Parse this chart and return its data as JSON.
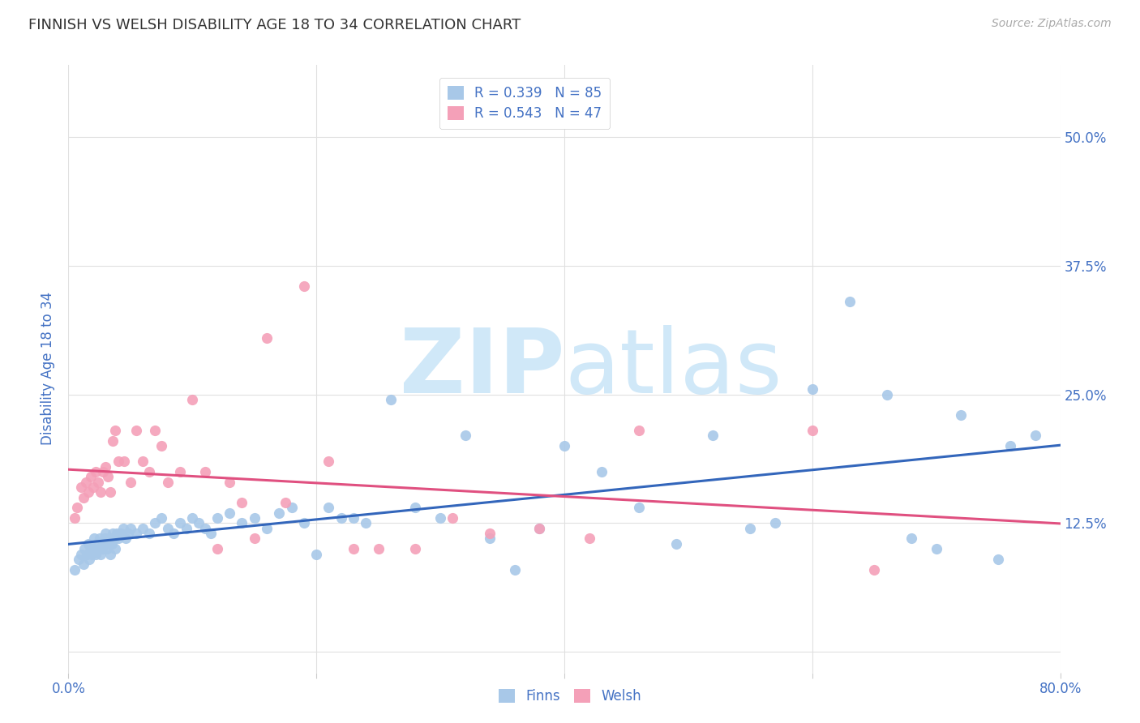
{
  "title": "FINNISH VS WELSH DISABILITY AGE 18 TO 34 CORRELATION CHART",
  "source": "Source: ZipAtlas.com",
  "ylabel": "Disability Age 18 to 34",
  "xlim": [
    0.0,
    0.8
  ],
  "ylim": [
    -0.02,
    0.57
  ],
  "xticks": [
    0.0,
    0.2,
    0.4,
    0.6,
    0.8
  ],
  "xticklabels": [
    "0.0%",
    "",
    "",
    "",
    "80.0%"
  ],
  "yticks": [
    0.0,
    0.125,
    0.25,
    0.375,
    0.5
  ],
  "yticklabels_right": [
    "",
    "12.5%",
    "25.0%",
    "37.5%",
    "50.0%"
  ],
  "finns_R": 0.339,
  "finns_N": 85,
  "welsh_R": 0.543,
  "welsh_N": 47,
  "title_color": "#333333",
  "source_color": "#aaaaaa",
  "finns_color": "#a8c8e8",
  "welsh_color": "#f4a0b8",
  "finns_line_color": "#3366bb",
  "welsh_line_color": "#e05080",
  "axis_label_color": "#4472c4",
  "legend_text_color": "#4472c4",
  "watermark_color": "#d0e8f8",
  "finns_x": [
    0.005,
    0.008,
    0.01,
    0.012,
    0.013,
    0.015,
    0.016,
    0.017,
    0.018,
    0.019,
    0.02,
    0.021,
    0.022,
    0.023,
    0.024,
    0.025,
    0.026,
    0.027,
    0.028,
    0.029,
    0.03,
    0.031,
    0.032,
    0.033,
    0.034,
    0.035,
    0.036,
    0.037,
    0.038,
    0.039,
    0.04,
    0.042,
    0.044,
    0.046,
    0.048,
    0.05,
    0.055,
    0.06,
    0.065,
    0.07,
    0.075,
    0.08,
    0.085,
    0.09,
    0.095,
    0.1,
    0.105,
    0.11,
    0.115,
    0.12,
    0.13,
    0.14,
    0.15,
    0.16,
    0.17,
    0.18,
    0.19,
    0.2,
    0.21,
    0.22,
    0.23,
    0.24,
    0.26,
    0.28,
    0.3,
    0.32,
    0.34,
    0.36,
    0.38,
    0.4,
    0.43,
    0.46,
    0.49,
    0.52,
    0.55,
    0.57,
    0.6,
    0.63,
    0.66,
    0.68,
    0.7,
    0.72,
    0.75,
    0.76,
    0.78
  ],
  "finns_y": [
    0.08,
    0.09,
    0.095,
    0.085,
    0.1,
    0.095,
    0.105,
    0.09,
    0.1,
    0.095,
    0.1,
    0.11,
    0.095,
    0.105,
    0.1,
    0.11,
    0.095,
    0.1,
    0.105,
    0.11,
    0.115,
    0.1,
    0.105,
    0.11,
    0.095,
    0.105,
    0.115,
    0.11,
    0.1,
    0.115,
    0.11,
    0.115,
    0.12,
    0.11,
    0.115,
    0.12,
    0.115,
    0.12,
    0.115,
    0.125,
    0.13,
    0.12,
    0.115,
    0.125,
    0.12,
    0.13,
    0.125,
    0.12,
    0.115,
    0.13,
    0.135,
    0.125,
    0.13,
    0.12,
    0.135,
    0.14,
    0.125,
    0.095,
    0.14,
    0.13,
    0.13,
    0.125,
    0.245,
    0.14,
    0.13,
    0.21,
    0.11,
    0.08,
    0.12,
    0.2,
    0.175,
    0.14,
    0.105,
    0.21,
    0.12,
    0.125,
    0.255,
    0.34,
    0.25,
    0.11,
    0.1,
    0.23,
    0.09,
    0.2,
    0.21
  ],
  "welsh_x": [
    0.005,
    0.007,
    0.01,
    0.012,
    0.014,
    0.016,
    0.018,
    0.02,
    0.022,
    0.024,
    0.026,
    0.028,
    0.03,
    0.032,
    0.034,
    0.036,
    0.038,
    0.04,
    0.045,
    0.05,
    0.055,
    0.06,
    0.065,
    0.07,
    0.075,
    0.08,
    0.09,
    0.1,
    0.11,
    0.12,
    0.13,
    0.14,
    0.15,
    0.16,
    0.175,
    0.19,
    0.21,
    0.23,
    0.25,
    0.28,
    0.31,
    0.34,
    0.38,
    0.42,
    0.46,
    0.6,
    0.65
  ],
  "welsh_y": [
    0.13,
    0.14,
    0.16,
    0.15,
    0.165,
    0.155,
    0.17,
    0.16,
    0.175,
    0.165,
    0.155,
    0.175,
    0.18,
    0.17,
    0.155,
    0.205,
    0.215,
    0.185,
    0.185,
    0.165,
    0.215,
    0.185,
    0.175,
    0.215,
    0.2,
    0.165,
    0.175,
    0.245,
    0.175,
    0.1,
    0.165,
    0.145,
    0.11,
    0.305,
    0.145,
    0.355,
    0.185,
    0.1,
    0.1,
    0.1,
    0.13,
    0.115,
    0.12,
    0.11,
    0.215,
    0.215,
    0.08
  ]
}
